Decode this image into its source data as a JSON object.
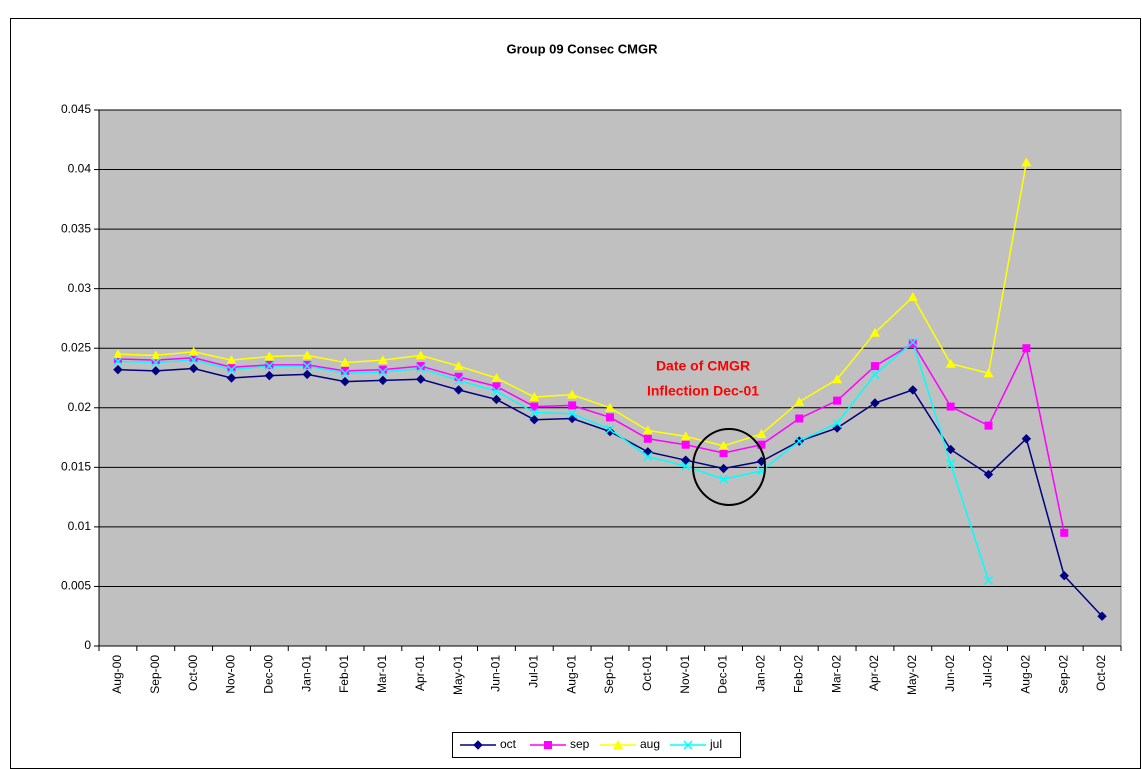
{
  "chart_data": {
    "type": "line",
    "title": "Group 09 Consec CMGR",
    "annotation": [
      "Date of CMGR",
      "Inflection Dec-01"
    ],
    "categories": [
      "Aug-00",
      "Sep-00",
      "Oct-00",
      "Nov-00",
      "Dec-00",
      "Jan-01",
      "Feb-01",
      "Mar-01",
      "Apr-01",
      "May-01",
      "Jun-01",
      "Jul-01",
      "Aug-01",
      "Sep-01",
      "Oct-01",
      "Nov-01",
      "Dec-01",
      "Jan-02",
      "Feb-02",
      "Mar-02",
      "Apr-02",
      "May-02",
      "Jun-02",
      "Jul-02",
      "Aug-02",
      "Sep-02",
      "Oct-02"
    ],
    "series": [
      {
        "name": "oct",
        "color": "#000080",
        "marker": "diamond",
        "values": [
          0.0232,
          0.0231,
          0.0233,
          0.0225,
          0.0227,
          0.0228,
          0.0222,
          0.0223,
          0.0224,
          0.0215,
          0.0207,
          0.019,
          0.0191,
          0.018,
          0.0163,
          0.0156,
          0.0149,
          0.0155,
          0.0172,
          0.0183,
          0.0204,
          0.0215,
          0.0165,
          0.0144,
          0.0174,
          0.0059,
          0.0025
        ]
      },
      {
        "name": "sep",
        "color": "#ff00ff",
        "marker": "square",
        "values": [
          0.0241,
          0.024,
          0.0242,
          0.0234,
          0.0236,
          0.0236,
          0.0231,
          0.0232,
          0.0235,
          0.0226,
          0.0218,
          0.0201,
          0.0202,
          0.0192,
          0.0174,
          0.0169,
          0.0162,
          0.0169,
          0.0191,
          0.0206,
          0.0235,
          0.0254,
          0.0201,
          0.0185,
          0.025,
          0.0095,
          null
        ]
      },
      {
        "name": "aug",
        "color": "#ffff00",
        "marker": "triangle",
        "values": [
          0.0245,
          0.0244,
          0.0247,
          0.024,
          0.0243,
          0.0244,
          0.0238,
          0.024,
          0.0244,
          0.0235,
          0.0225,
          0.0209,
          0.0211,
          0.02,
          0.0181,
          0.0176,
          0.0168,
          0.0178,
          0.0205,
          0.0224,
          0.0263,
          0.0293,
          0.0237,
          0.0229,
          0.0406,
          null,
          null
        ]
      },
      {
        "name": "jul",
        "color": "#00ffff",
        "marker": "x",
        "values": [
          0.0239,
          0.0238,
          0.024,
          0.0232,
          0.0235,
          0.0235,
          0.0229,
          0.023,
          0.0233,
          0.0223,
          0.0214,
          0.0196,
          0.0195,
          0.0182,
          0.0159,
          0.0151,
          0.014,
          0.0147,
          0.0172,
          0.0187,
          0.0228,
          0.0255,
          0.0153,
          0.0055,
          null,
          null,
          null
        ]
      }
    ],
    "ylim": [
      0,
      0.045
    ],
    "yticks": [
      0,
      0.005,
      0.01,
      0.015,
      0.02,
      0.025,
      0.03,
      0.035,
      0.04,
      0.045
    ],
    "grid": true,
    "plot_background": "#c0c0c0",
    "legend": "bottom"
  }
}
